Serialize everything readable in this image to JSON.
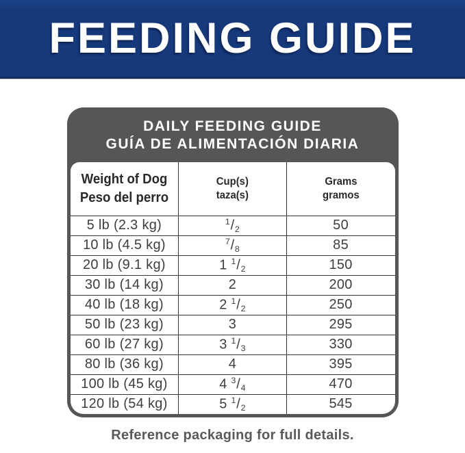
{
  "banner": {
    "title": "FEEDING GUIDE",
    "bg_color": "#16397b",
    "text_color": "#ffffff"
  },
  "table": {
    "title_line1": "DAILY FEEDING GUIDE",
    "title_line2": "GUÍA DE ALIMENTACIÓN DIARIA",
    "header_bg_color": "#565658",
    "grid_color": "#343436",
    "columns": [
      {
        "line1": "Weight of Dog",
        "line2": "Peso del perro"
      },
      {
        "line1": "Cup(s)",
        "line2": "taza(s)"
      },
      {
        "line1": "Grams",
        "line2": "gramos"
      }
    ],
    "rows": [
      {
        "weight": "5 lb (2.3 kg)",
        "cups_whole": "",
        "cups_num": "1",
        "cups_den": "2",
        "grams": "50"
      },
      {
        "weight": "10 lb (4.5 kg)",
        "cups_whole": "",
        "cups_num": "7",
        "cups_den": "8",
        "grams": "85"
      },
      {
        "weight": "20 lb (9.1 kg)",
        "cups_whole": "1",
        "cups_num": "1",
        "cups_den": "2",
        "grams": "150"
      },
      {
        "weight": "30 lb (14 kg)",
        "cups_whole": "2",
        "cups_num": "",
        "cups_den": "",
        "grams": "200"
      },
      {
        "weight": "40 lb (18 kg)",
        "cups_whole": "2",
        "cups_num": "1",
        "cups_den": "2",
        "grams": "250"
      },
      {
        "weight": "50 lb (23 kg)",
        "cups_whole": "3",
        "cups_num": "",
        "cups_den": "",
        "grams": "295"
      },
      {
        "weight": "60 lb (27 kg)",
        "cups_whole": "3",
        "cups_num": "1",
        "cups_den": "3",
        "grams": "330"
      },
      {
        "weight": "80 lb (36 kg)",
        "cups_whole": "4",
        "cups_num": "",
        "cups_den": "",
        "grams": "395"
      },
      {
        "weight": "100 lb (45 kg)",
        "cups_whole": "4",
        "cups_num": "3",
        "cups_den": "4",
        "grams": "470"
      },
      {
        "weight": "120 lb (54 kg)",
        "cups_whole": "5",
        "cups_num": "1",
        "cups_den": "2",
        "grams": "545"
      }
    ]
  },
  "footer": {
    "note": "Reference packaging for full details."
  }
}
